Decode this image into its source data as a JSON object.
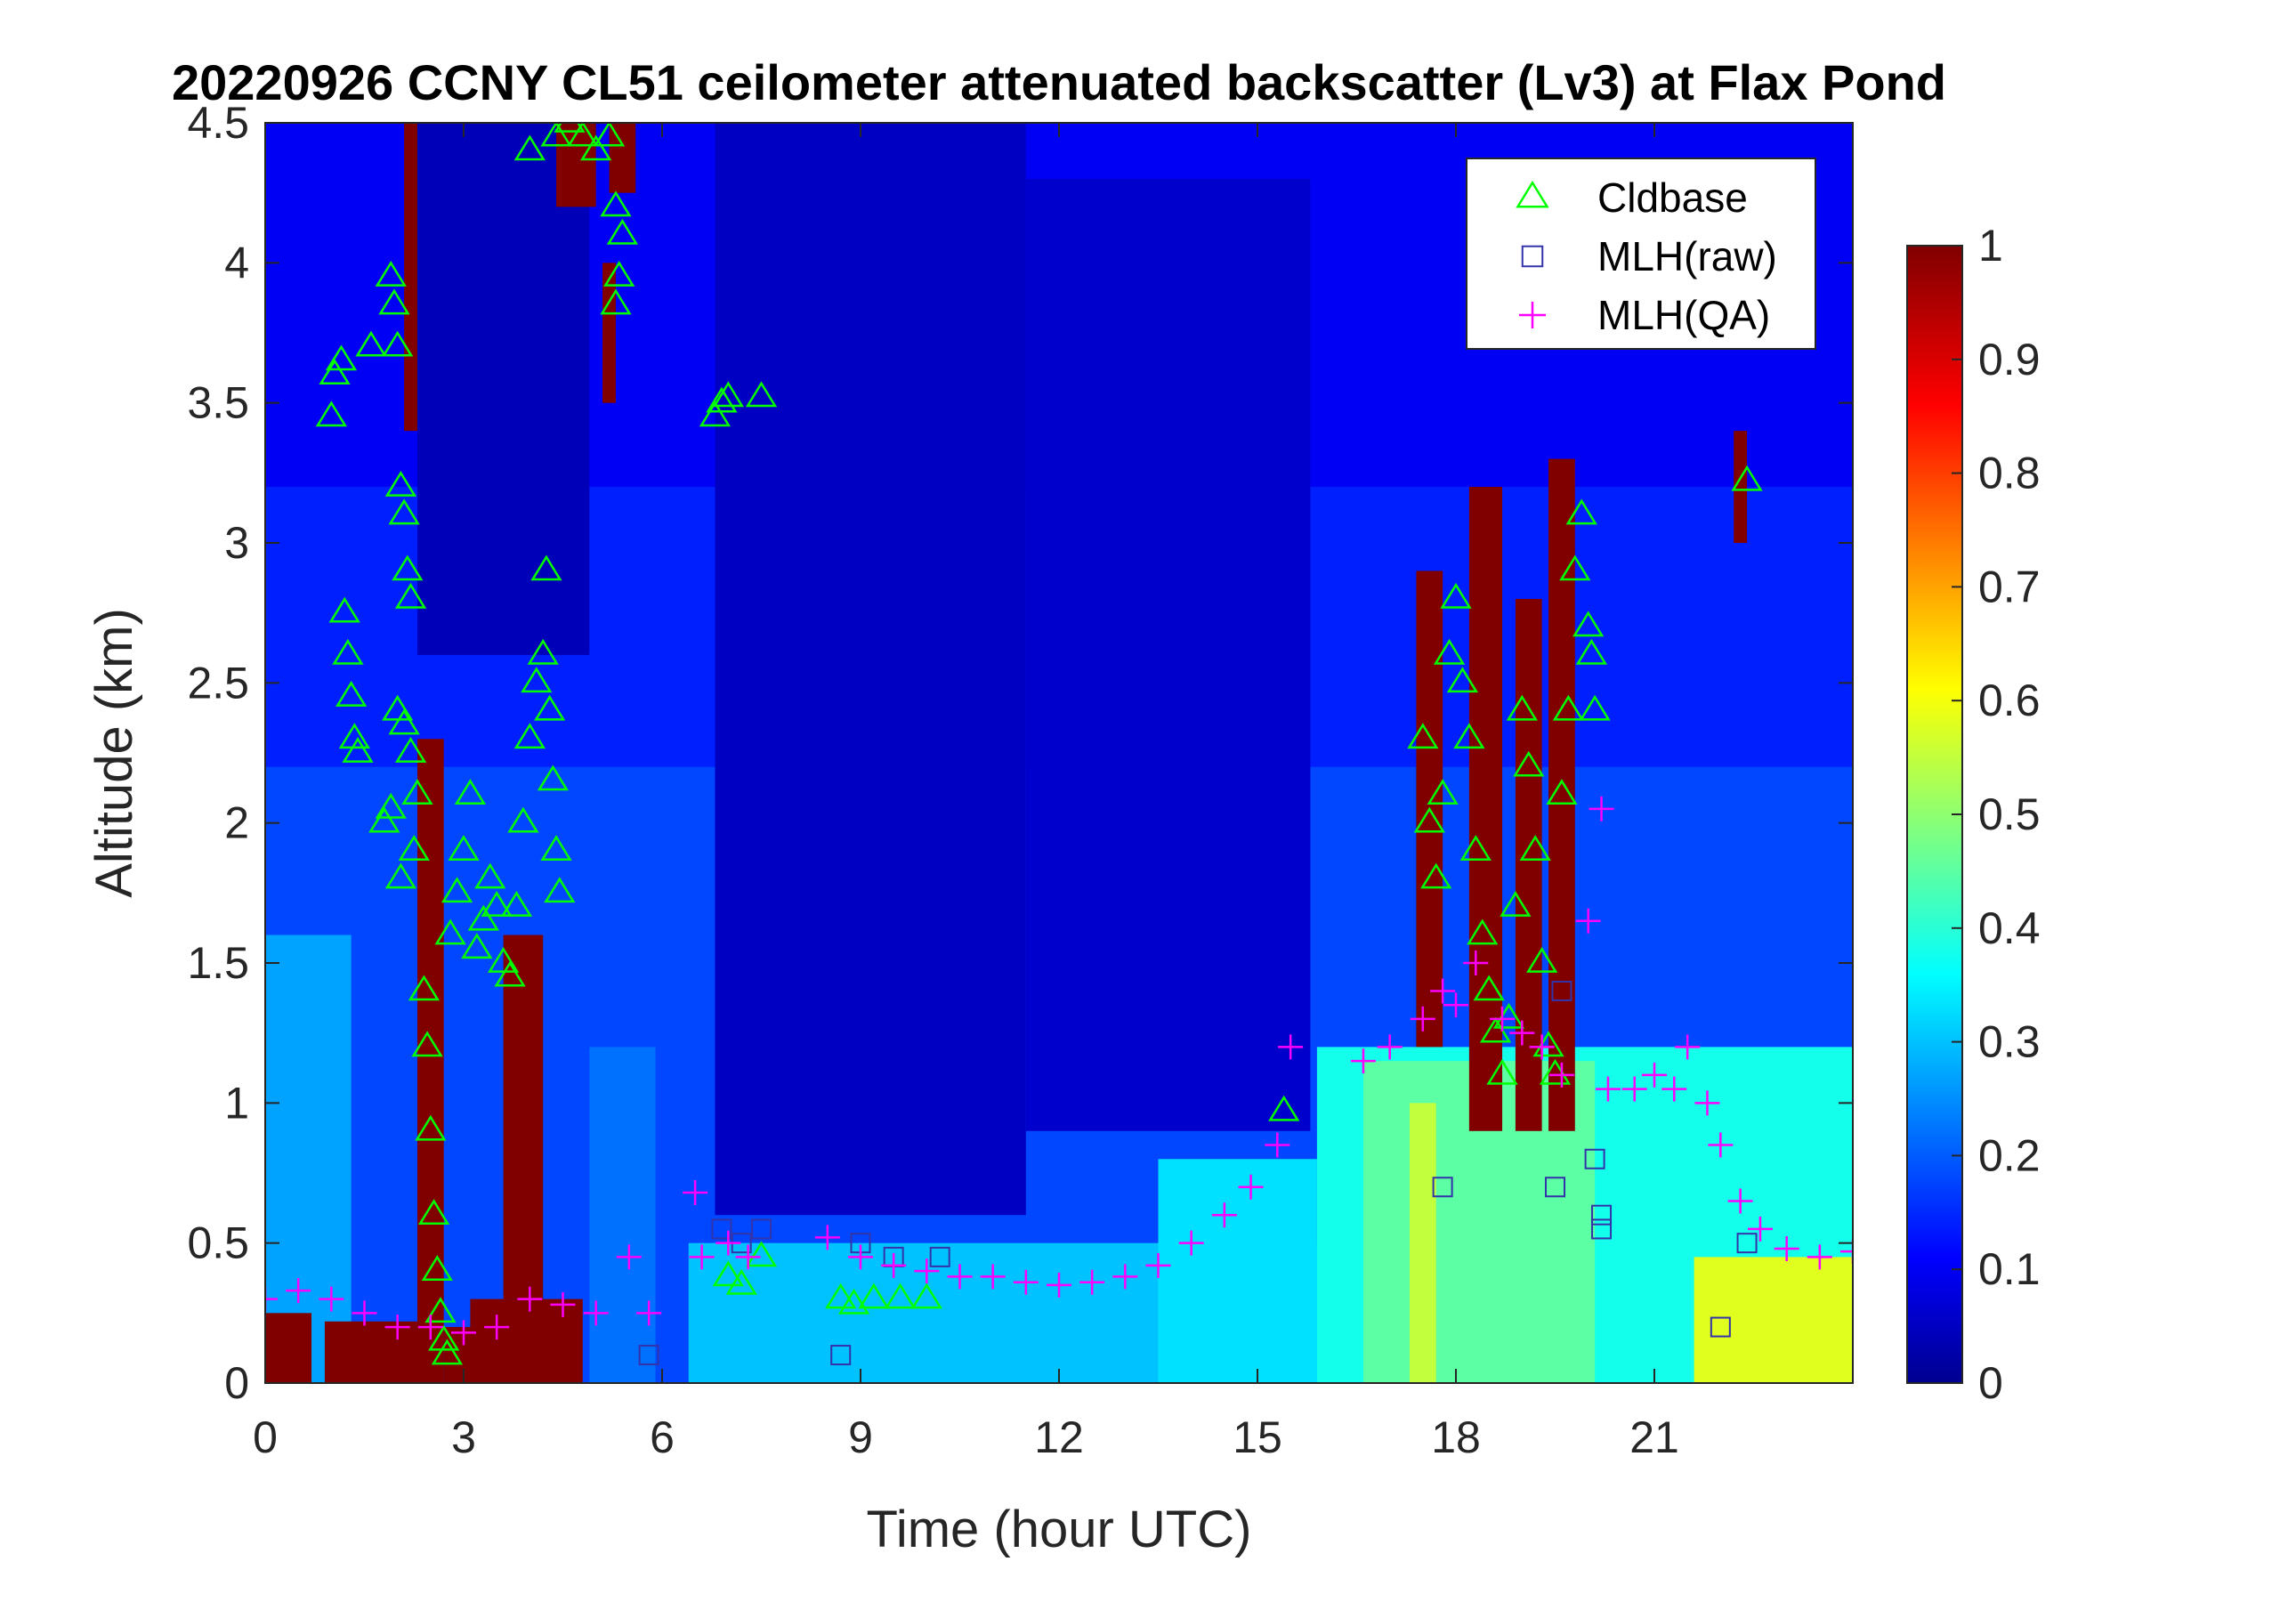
{
  "chart_data": {
    "type": "heatmap",
    "title": "20220926 CCNY CL51 ceilometer attenuated backscatter (Lv3) at Flax Pond",
    "xlabel": "Time (hour UTC)",
    "ylabel": "Altitude (km)",
    "xlim": [
      0,
      24
    ],
    "ylim": [
      0,
      4.5
    ],
    "xticks": [
      0,
      3,
      6,
      9,
      12,
      15,
      18,
      21
    ],
    "xtick_labels": [
      "0",
      "3",
      "6",
      "9",
      "12",
      "15",
      "18",
      "21"
    ],
    "yticks": [
      0,
      0.5,
      1,
      1.5,
      2,
      2.5,
      3,
      3.5,
      4,
      4.5
    ],
    "ytick_labels": [
      "0",
      "0.5",
      "1",
      "1.5",
      "2",
      "2.5",
      "3",
      "3.5",
      "4",
      "4.5"
    ],
    "colorbar": {
      "colormap": "jet",
      "range": [
        0,
        1
      ],
      "ticks": [
        0,
        0.1,
        0.2,
        0.3,
        0.4,
        0.5,
        0.6,
        0.7,
        0.8,
        0.9,
        1
      ],
      "tick_labels": [
        "0",
        "0.1",
        "0.2",
        "0.3",
        "0.4",
        "0.5",
        "0.6",
        "0.7",
        "0.8",
        "0.9",
        "1"
      ]
    },
    "legend": {
      "placement": "top-right",
      "entries": [
        {
          "label": "Cldbase",
          "marker": "triangle",
          "color": "#00ff00"
        },
        {
          "label": "MLH(raw)",
          "marker": "square",
          "color": "#3333aa"
        },
        {
          "label": "MLH(QA)",
          "marker": "plus",
          "color": "#ff00ff"
        }
      ]
    },
    "background": [
      {
        "x0": 0,
        "x1": 24,
        "y0": 0,
        "y1": 4.5,
        "value": 0.1
      },
      {
        "x0": 0,
        "x1": 24,
        "y0": 0,
        "y1": 3.2,
        "value": 0.14
      },
      {
        "x0": 0,
        "x1": 24,
        "y0": 0,
        "y1": 2.2,
        "value": 0.18
      },
      {
        "x0": 0,
        "x1": 1.3,
        "y0": 0,
        "y1": 1.6,
        "value": 0.27
      },
      {
        "x0": 4.9,
        "x1": 5.9,
        "y0": 0,
        "y1": 1.2,
        "value": 0.22
      },
      {
        "x0": 6.4,
        "x1": 15.9,
        "y0": 0,
        "y1": 0.5,
        "value": 0.3
      },
      {
        "x0": 13.5,
        "x1": 15.9,
        "y0": 0,
        "y1": 0.8,
        "value": 0.33
      },
      {
        "x0": 15.9,
        "x1": 24,
        "y0": 0,
        "y1": 1.2,
        "value": 0.38
      },
      {
        "x0": 16.6,
        "x1": 20.1,
        "y0": 0,
        "y1": 1.15,
        "value": 0.45
      },
      {
        "x0": 21.6,
        "x1": 24,
        "y0": 0,
        "y1": 0.45,
        "value": 0.58
      },
      {
        "x0": 17.3,
        "x1": 17.7,
        "y0": 0,
        "y1": 1.0,
        "value": 0.55
      },
      {
        "x0": 6.8,
        "x1": 11.5,
        "y0": 0.6,
        "y1": 4.5,
        "value": 0.05
      },
      {
        "x0": 11.5,
        "x1": 15.8,
        "y0": 0.9,
        "y1": 4.3,
        "value": 0.06
      },
      {
        "x0": 2.3,
        "x1": 4.9,
        "y0": 2.6,
        "y1": 4.5,
        "value": 0.04
      }
    ],
    "cloud_cells": [
      {
        "x0": 0,
        "x1": 0.7,
        "y0": 0,
        "y1": 0.25,
        "value": 1
      },
      {
        "x0": 0.9,
        "x1": 2.3,
        "y0": 0,
        "y1": 0.22,
        "value": 1
      },
      {
        "x0": 2.3,
        "x1": 2.7,
        "y0": 0,
        "y1": 2.3,
        "value": 1
      },
      {
        "x0": 2.7,
        "x1": 3.2,
        "y0": 0,
        "y1": 0.2,
        "value": 1
      },
      {
        "x0": 3.1,
        "x1": 4.8,
        "y0": 0,
        "y1": 0.3,
        "value": 1
      },
      {
        "x0": 3.6,
        "x1": 4.2,
        "y0": 0.3,
        "y1": 1.6,
        "value": 1
      },
      {
        "x0": 2.1,
        "x1": 2.3,
        "y0": 3.4,
        "y1": 4.5,
        "value": 1
      },
      {
        "x0": 4.4,
        "x1": 5.0,
        "y0": 4.2,
        "y1": 4.5,
        "value": 1
      },
      {
        "x0": 5.2,
        "x1": 5.6,
        "y0": 4.25,
        "y1": 4.5,
        "value": 1
      },
      {
        "x0": 5.1,
        "x1": 5.3,
        "y0": 3.5,
        "y1": 4.0,
        "value": 1
      },
      {
        "x0": 17.4,
        "x1": 17.8,
        "y0": 1.2,
        "y1": 2.9,
        "value": 1
      },
      {
        "x0": 18.2,
        "x1": 18.7,
        "y0": 0.9,
        "y1": 3.2,
        "value": 1
      },
      {
        "x0": 18.9,
        "x1": 19.3,
        "y0": 0.9,
        "y1": 2.8,
        "value": 1
      },
      {
        "x0": 19.4,
        "x1": 19.8,
        "y0": 0.9,
        "y1": 3.3,
        "value": 1
      },
      {
        "x0": 22.2,
        "x1": 22.4,
        "y0": 3.0,
        "y1": 3.4,
        "value": 1
      }
    ],
    "series": [
      {
        "name": "Cldbase",
        "marker": "triangle",
        "points": [
          [
            1.0,
            3.45
          ],
          [
            1.05,
            3.6
          ],
          [
            1.15,
            3.65
          ],
          [
            1.2,
            2.75
          ],
          [
            1.25,
            2.6
          ],
          [
            1.3,
            2.45
          ],
          [
            1.35,
            2.3
          ],
          [
            1.4,
            2.25
          ],
          [
            1.6,
            3.7
          ],
          [
            1.9,
            3.95
          ],
          [
            1.95,
            3.85
          ],
          [
            2.0,
            3.7
          ],
          [
            2.05,
            3.2
          ],
          [
            2.1,
            3.1
          ],
          [
            2.15,
            2.9
          ],
          [
            2.2,
            2.8
          ],
          [
            1.8,
            2.0
          ],
          [
            1.9,
            2.05
          ],
          [
            2.0,
            2.4
          ],
          [
            2.1,
            2.35
          ],
          [
            2.2,
            2.25
          ],
          [
            2.3,
            2.1
          ],
          [
            2.05,
            1.8
          ],
          [
            2.25,
            1.9
          ],
          [
            2.4,
            1.4
          ],
          [
            2.45,
            1.2
          ],
          [
            2.5,
            0.9
          ],
          [
            2.55,
            0.6
          ],
          [
            2.6,
            0.4
          ],
          [
            2.65,
            0.25
          ],
          [
            2.7,
            0.15
          ],
          [
            2.75,
            0.1
          ],
          [
            2.8,
            1.6
          ],
          [
            2.9,
            1.75
          ],
          [
            3.0,
            1.9
          ],
          [
            3.1,
            2.1
          ],
          [
            3.2,
            1.55
          ],
          [
            3.3,
            1.65
          ],
          [
            3.4,
            1.8
          ],
          [
            3.5,
            1.7
          ],
          [
            3.6,
            1.5
          ],
          [
            3.7,
            1.45
          ],
          [
            3.8,
            1.7
          ],
          [
            3.9,
            2.0
          ],
          [
            4.0,
            2.3
          ],
          [
            4.1,
            2.5
          ],
          [
            4.2,
            2.6
          ],
          [
            4.25,
            2.9
          ],
          [
            4.3,
            2.4
          ],
          [
            4.35,
            2.15
          ],
          [
            4.4,
            1.9
          ],
          [
            4.45,
            1.75
          ],
          [
            4.0,
            4.4
          ],
          [
            4.4,
            4.45
          ],
          [
            4.6,
            4.5
          ],
          [
            4.8,
            4.45
          ],
          [
            5.0,
            4.4
          ],
          [
            5.2,
            4.45
          ],
          [
            5.3,
            4.2
          ],
          [
            5.4,
            4.1
          ],
          [
            5.3,
            3.85
          ],
          [
            5.35,
            3.95
          ],
          [
            6.8,
            3.45
          ],
          [
            6.9,
            3.5
          ],
          [
            7.0,
            3.52
          ],
          [
            7.5,
            3.52
          ],
          [
            7.0,
            0.38
          ],
          [
            7.2,
            0.35
          ],
          [
            7.5,
            0.45
          ],
          [
            8.7,
            0.3
          ],
          [
            8.9,
            0.28
          ],
          [
            9.2,
            0.3
          ],
          [
            9.6,
            0.3
          ],
          [
            10.0,
            0.3
          ],
          [
            15.4,
            0.97
          ],
          [
            17.5,
            2.3
          ],
          [
            17.6,
            2.0
          ],
          [
            17.7,
            1.8
          ],
          [
            17.8,
            2.1
          ],
          [
            17.9,
            2.6
          ],
          [
            18.0,
            2.8
          ],
          [
            18.1,
            2.5
          ],
          [
            18.2,
            2.3
          ],
          [
            18.3,
            1.9
          ],
          [
            18.4,
            1.6
          ],
          [
            18.5,
            1.4
          ],
          [
            18.6,
            1.25
          ],
          [
            18.7,
            1.1
          ],
          [
            18.8,
            1.3
          ],
          [
            18.9,
            1.7
          ],
          [
            19.0,
            2.4
          ],
          [
            19.1,
            2.2
          ],
          [
            19.2,
            1.9
          ],
          [
            19.3,
            1.5
          ],
          [
            19.4,
            1.2
          ],
          [
            19.5,
            1.1
          ],
          [
            19.6,
            2.1
          ],
          [
            19.7,
            2.4
          ],
          [
            19.8,
            2.9
          ],
          [
            19.9,
            3.1
          ],
          [
            20.0,
            2.7
          ],
          [
            20.05,
            2.6
          ],
          [
            20.1,
            2.4
          ],
          [
            22.4,
            3.22
          ]
        ]
      },
      {
        "name": "MLH(raw)",
        "marker": "square",
        "points": [
          [
            5.8,
            0.1
          ],
          [
            6.9,
            0.55
          ],
          [
            7.2,
            0.5
          ],
          [
            7.5,
            0.55
          ],
          [
            8.7,
            0.1
          ],
          [
            9.0,
            0.5
          ],
          [
            9.5,
            0.45
          ],
          [
            10.2,
            0.45
          ],
          [
            17.8,
            0.7
          ],
          [
            19.5,
            0.7
          ],
          [
            19.6,
            1.4
          ],
          [
            20.1,
            0.8
          ],
          [
            20.2,
            0.55
          ],
          [
            20.2,
            0.6
          ],
          [
            22.0,
            0.2
          ],
          [
            22.4,
            0.5
          ]
        ]
      },
      {
        "name": "MLH(QA)",
        "marker": "plus",
        "points": [
          [
            0.0,
            0.3
          ],
          [
            0.5,
            0.33
          ],
          [
            1.0,
            0.3
          ],
          [
            1.5,
            0.25
          ],
          [
            2.0,
            0.2
          ],
          [
            2.5,
            0.2
          ],
          [
            3.0,
            0.18
          ],
          [
            3.5,
            0.2
          ],
          [
            4.0,
            0.3
          ],
          [
            4.5,
            0.28
          ],
          [
            5.0,
            0.25
          ],
          [
            5.5,
            0.45
          ],
          [
            5.8,
            0.25
          ],
          [
            6.5,
            0.68
          ],
          [
            6.6,
            0.45
          ],
          [
            7.0,
            0.5
          ],
          [
            7.3,
            0.45
          ],
          [
            8.5,
            0.52
          ],
          [
            9.0,
            0.45
          ],
          [
            9.5,
            0.42
          ],
          [
            10.0,
            0.4
          ],
          [
            10.5,
            0.38
          ],
          [
            11.0,
            0.38
          ],
          [
            11.5,
            0.36
          ],
          [
            12.0,
            0.35
          ],
          [
            12.5,
            0.36
          ],
          [
            13.0,
            0.38
          ],
          [
            13.5,
            0.42
          ],
          [
            14.0,
            0.5
          ],
          [
            14.5,
            0.6
          ],
          [
            14.9,
            0.7
          ],
          [
            15.3,
            0.85
          ],
          [
            15.5,
            1.2
          ],
          [
            16.6,
            1.15
          ],
          [
            17.0,
            1.2
          ],
          [
            17.5,
            1.3
          ],
          [
            17.8,
            1.4
          ],
          [
            18.0,
            1.35
          ],
          [
            18.3,
            1.5
          ],
          [
            18.7,
            1.3
          ],
          [
            19.0,
            1.25
          ],
          [
            19.3,
            1.2
          ],
          [
            19.6,
            1.1
          ],
          [
            20.0,
            1.65
          ],
          [
            20.2,
            2.05
          ],
          [
            20.3,
            1.05
          ],
          [
            20.7,
            1.05
          ],
          [
            21.0,
            1.1
          ],
          [
            21.3,
            1.05
          ],
          [
            21.5,
            1.2
          ],
          [
            21.8,
            1.0
          ],
          [
            22.0,
            0.85
          ],
          [
            22.3,
            0.65
          ],
          [
            22.6,
            0.55
          ],
          [
            23.0,
            0.48
          ],
          [
            23.5,
            0.45
          ],
          [
            24.0,
            0.47
          ]
        ]
      }
    ]
  }
}
